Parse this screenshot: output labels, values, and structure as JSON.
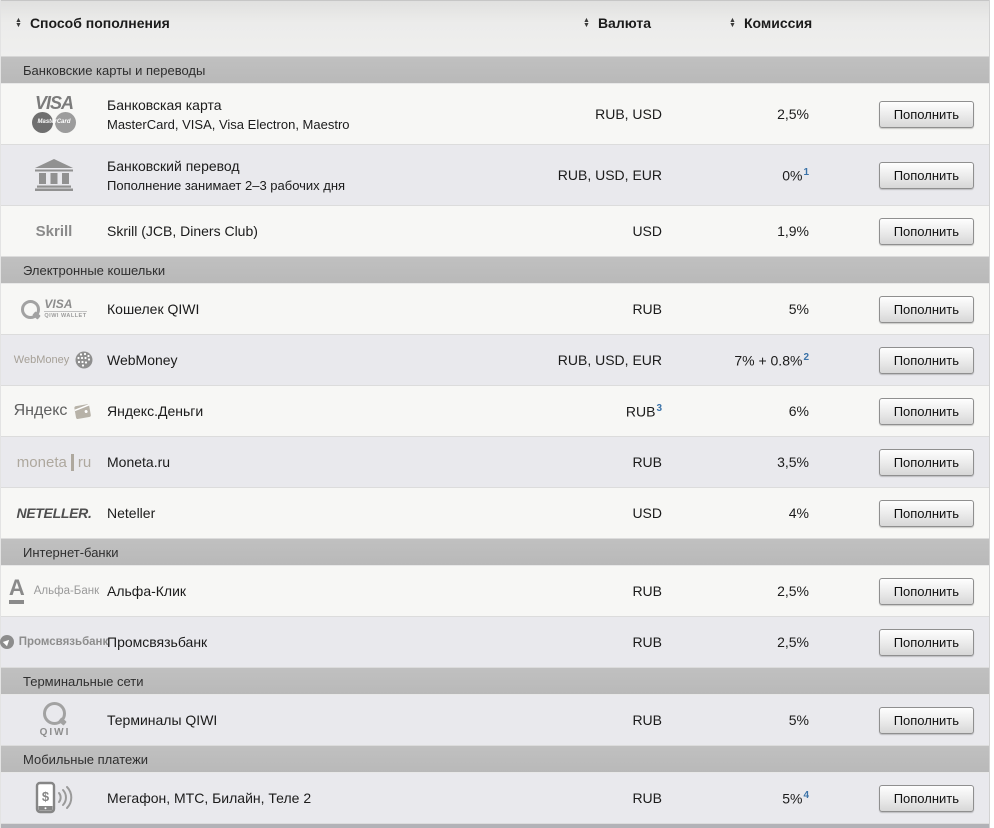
{
  "colors": {
    "footnote_accent": "#3a72a8",
    "section_bg": "#b9b9b9",
    "row_light": "#f7f7f5",
    "row_dark": "#e9e9ed"
  },
  "table": {
    "columns": [
      {
        "label": "Способ пополнения",
        "sortable": true
      },
      {
        "label": "Валюта",
        "sortable": true
      },
      {
        "label": "Комиссия",
        "sortable": true
      }
    ],
    "deposit_button_label": "Пополнить",
    "sections": [
      {
        "title": "Банковские карты и переводы",
        "rows": [
          {
            "logo": {
              "type": "visa-mastercard",
              "texts": {
                "main": "VISA",
                "sub": "MasterCard"
              }
            },
            "name": "Банковская карта",
            "subtitle": "MasterCard, VISA, Visa Electron, Maestro",
            "currency": "RUB, USD",
            "commission": "2,5%"
          },
          {
            "logo": {
              "type": "bank-transfer",
              "texts": {}
            },
            "name": "Банковский перевод",
            "subtitle": "Пополнение занимает 2–3 рабочих дня",
            "currency": "RUB, USD, EUR",
            "commission": "0%",
            "commission_note": "1"
          },
          {
            "logo": {
              "type": "skrill",
              "texts": {
                "main": "Skrill"
              }
            },
            "name": "Skrill (JCB, Diners Club)",
            "currency": "USD",
            "commission": "1,9%"
          }
        ]
      },
      {
        "title": "Электронные кошельки",
        "rows": [
          {
            "logo": {
              "type": "qiwi-wallet",
              "texts": {
                "main": "VISA",
                "sub": "QIWI WALLET"
              }
            },
            "name": "Кошелек QIWI",
            "currency": "RUB",
            "commission": "5%"
          },
          {
            "logo": {
              "type": "webmoney",
              "texts": {
                "main": "WebMoney"
              }
            },
            "name": "WebMoney",
            "currency": "RUB, USD, EUR",
            "commission": "7% + 0.8%",
            "commission_note": "2"
          },
          {
            "logo": {
              "type": "yandex-money",
              "texts": {
                "main": "Яндекс"
              }
            },
            "name": "Яндекс.Деньги",
            "currency": "RUB",
            "currency_note": "3",
            "commission": "6%"
          },
          {
            "logo": {
              "type": "moneta-ru",
              "texts": {
                "main": "moneta",
                "sub": "ru"
              }
            },
            "name": "Moneta.ru",
            "currency": "RUB",
            "commission": "3,5%"
          },
          {
            "logo": {
              "type": "neteller",
              "texts": {
                "main": "NETELLER."
              }
            },
            "name": "Neteller",
            "currency": "USD",
            "commission": "4%"
          }
        ]
      },
      {
        "title": "Интернет-банки",
        "rows": [
          {
            "logo": {
              "type": "alfa-bank",
              "texts": {
                "main": "А",
                "sub": "Альфа-Банк"
              }
            },
            "name": "Альфа-Клик",
            "currency": "RUB",
            "commission": "2,5%"
          },
          {
            "logo": {
              "type": "promsvyazbank",
              "texts": {
                "main": "Промсвязьбанк"
              }
            },
            "name": "Промсвязьбанк",
            "currency": "RUB",
            "commission": "2,5%"
          }
        ]
      },
      {
        "title": "Терминальные сети",
        "rows": [
          {
            "logo": {
              "type": "qiwi-terminal",
              "texts": {
                "sub": "QIWI"
              }
            },
            "name": "Терминалы QIWI",
            "currency": "RUB",
            "commission": "5%"
          }
        ]
      },
      {
        "title": "Мобильные платежи",
        "rows": [
          {
            "logo": {
              "type": "mobile-payment",
              "texts": {
                "main": "$"
              }
            },
            "name": "Мегафон, МТС, Билайн, Теле 2",
            "currency": "RUB",
            "commission": "5%",
            "commission_note": "4"
          }
        ]
      }
    ]
  }
}
